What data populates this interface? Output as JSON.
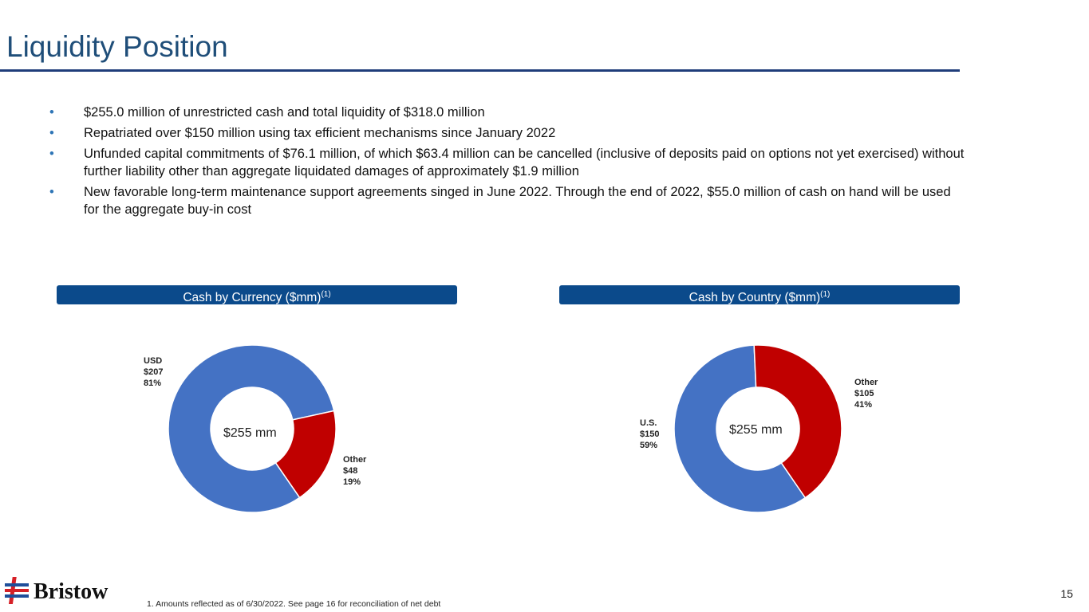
{
  "title": "Liquidity Position",
  "bullets": [
    "$255.0 million of unrestricted cash and total liquidity of $318.0 million",
    "Repatriated over $150 million using tax efficient mechanisms since January 2022",
    "Unfunded capital commitments of $76.1 million, of which $63.4 million can be cancelled (inclusive of deposits paid on options not yet exercised) without further liability other than aggregate liquidated damages of approximately $1.9 million",
    "New favorable long-term maintenance support agreements singed in June 2022. Through the end of 2022, $55.0 million of cash on hand will be used for the aggregate buy-in cost"
  ],
  "chart_data": [
    {
      "type": "pie",
      "title": "Cash by Currency ($mm)",
      "title_note": "(1)",
      "center_label": "$255 mm",
      "total": 255,
      "slices": [
        {
          "name": "USD",
          "value": 207,
          "percent": 81,
          "value_label": "$207",
          "percent_label": "81%",
          "color": "#4472C4"
        },
        {
          "name": "Other",
          "value": 48,
          "percent": 19,
          "value_label": "$48",
          "percent_label": "19%",
          "color": "#C00000"
        }
      ]
    },
    {
      "type": "pie",
      "title": "Cash by Country ($mm)",
      "title_note": "(1)",
      "center_label": "$255 mm",
      "total": 255,
      "slices": [
        {
          "name": "U.S.",
          "value": 150,
          "percent": 59,
          "value_label": "$150",
          "percent_label": "59%",
          "color": "#4472C4"
        },
        {
          "name": "Other",
          "value": 105,
          "percent": 41,
          "value_label": "$105",
          "percent_label": "41%",
          "color": "#C00000"
        }
      ]
    }
  ],
  "footnote": "1.    Amounts reflected as of 6/30/2022. See page 16 for reconciliation of net debt",
  "page_number": "15",
  "logo": "Bristow"
}
